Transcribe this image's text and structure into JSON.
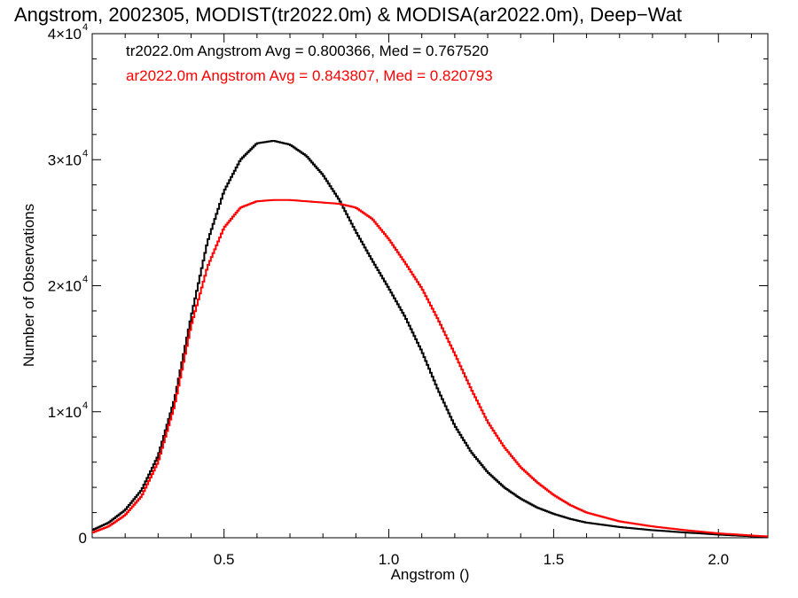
{
  "chart_data": {
    "type": "line",
    "title": "Angstrom, 2002305, MODIST(tr2022.0m) & MODISA(ar2022.0m), Deep−Wat",
    "xlabel": "Angstrom ()",
    "ylabel": "Number of Observations",
    "xlim": [
      0.1,
      2.15
    ],
    "ylim": [
      0,
      40000
    ],
    "grid": false,
    "x_ticks": [
      {
        "value": 0.5,
        "label": "0.5"
      },
      {
        "value": 1.0,
        "label": "1.0"
      },
      {
        "value": 1.5,
        "label": "1.5"
      },
      {
        "value": 2.0,
        "label": "2.0"
      }
    ],
    "y_ticks": [
      {
        "value": 0,
        "label": "0"
      },
      {
        "value": 10000,
        "mantissa": "1×10",
        "exp": "4"
      },
      {
        "value": 20000,
        "mantissa": "2×10",
        "exp": "4"
      },
      {
        "value": 30000,
        "mantissa": "3×10",
        "exp": "4"
      },
      {
        "value": 40000,
        "mantissa": "4×10",
        "exp": "4"
      }
    ],
    "annotations": [
      {
        "text": "tr2022.0m Angstrom Avg = 0.800366, Med = 0.767520",
        "color": "#000000"
      },
      {
        "text": "ar2022.0m Angstrom Avg = 0.843807, Med = 0.820793",
        "color": "#ff0000"
      }
    ],
    "series": [
      {
        "color": "#000000",
        "x": [
          0.1,
          0.15,
          0.2,
          0.25,
          0.3,
          0.35,
          0.4,
          0.45,
          0.5,
          0.55,
          0.6,
          0.65,
          0.7,
          0.75,
          0.8,
          0.85,
          0.9,
          0.95,
          1.0,
          1.05,
          1.1,
          1.15,
          1.2,
          1.25,
          1.3,
          1.35,
          1.4,
          1.45,
          1.5,
          1.55,
          1.6,
          1.7,
          1.8,
          1.9,
          2.0,
          2.1,
          2.15
        ],
        "y": [
          600,
          1200,
          2200,
          3800,
          6500,
          11000,
          17500,
          23500,
          27500,
          30000,
          31300,
          31500,
          31200,
          30300,
          28800,
          26800,
          24300,
          22000,
          19800,
          17500,
          14800,
          11700,
          8900,
          6800,
          5200,
          4000,
          3100,
          2400,
          1900,
          1500,
          1200,
          850,
          600,
          420,
          250,
          120,
          80
        ]
      },
      {
        "color": "#ff0000",
        "x": [
          0.1,
          0.15,
          0.2,
          0.25,
          0.3,
          0.35,
          0.4,
          0.45,
          0.5,
          0.55,
          0.6,
          0.65,
          0.7,
          0.75,
          0.8,
          0.85,
          0.9,
          0.95,
          1.0,
          1.05,
          1.1,
          1.15,
          1.2,
          1.25,
          1.3,
          1.35,
          1.4,
          1.45,
          1.5,
          1.55,
          1.6,
          1.7,
          1.8,
          1.9,
          2.0,
          2.1,
          2.15
        ],
        "y": [
          400,
          900,
          1800,
          3300,
          6000,
          10500,
          16800,
          21500,
          24600,
          26200,
          26700,
          26800,
          26800,
          26700,
          26600,
          26500,
          26200,
          25300,
          23700,
          21800,
          19800,
          17300,
          14600,
          11800,
          9200,
          7200,
          5600,
          4400,
          3400,
          2600,
          2000,
          1300,
          900,
          600,
          350,
          180,
          100
        ]
      }
    ]
  }
}
